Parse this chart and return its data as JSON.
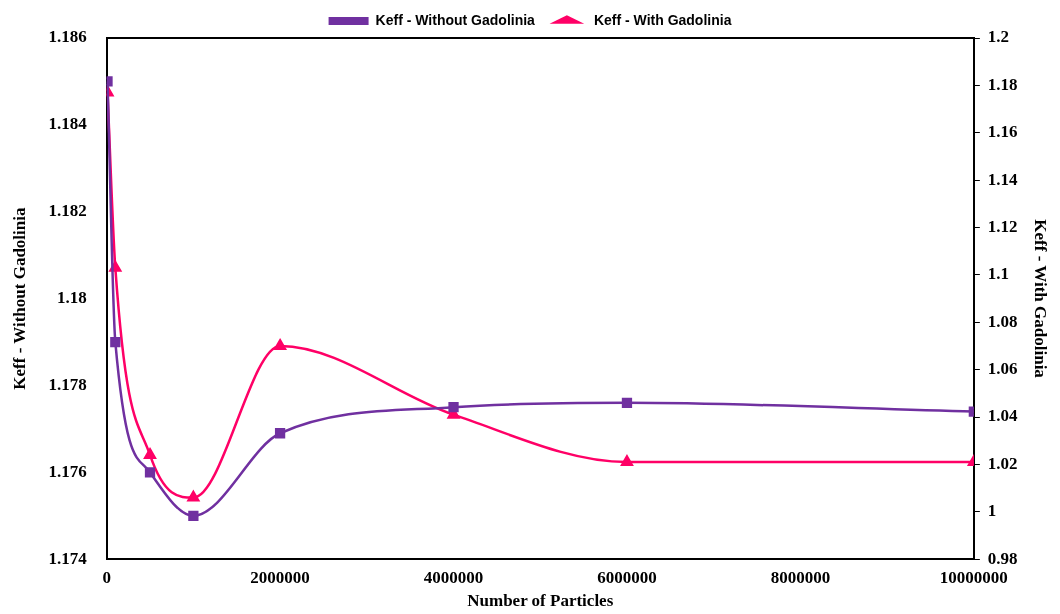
{
  "chart_data": {
    "type": "line",
    "xlabel": "Number of Particles",
    "ylabel": "Keff - Without Gadolinia",
    "y2label": "Keff - With Gadolinia",
    "x": [
      10000,
      100000,
      500000,
      1000000,
      2000000,
      4000000,
      6000000,
      10000000
    ],
    "series": [
      {
        "name": "Keff - Without Gadolinia",
        "color": "#7030a0",
        "marker": "square",
        "values": [
          1.185,
          1.179,
          1.176,
          1.175,
          1.1769,
          1.1775,
          1.1776,
          1.1774
        ]
      },
      {
        "name": "Keff - With Gadolinia",
        "color": "#ff0066",
        "marker": "triangle",
        "axis": "y2",
        "values": [
          1.177,
          1.103,
          1.024,
          1.006,
          1.07,
          1.041,
          1.021,
          1.021
        ]
      }
    ],
    "xlim": [
      0,
      10000000
    ],
    "xticks": [
      0,
      2000000,
      4000000,
      6000000,
      8000000,
      10000000
    ],
    "ylim": [
      1.174,
      1.186
    ],
    "yticks": [
      1.174,
      1.176,
      1.178,
      1.18,
      1.182,
      1.184,
      1.186
    ],
    "y2lim": [
      0.98,
      1.2
    ],
    "y2ticks": [
      0.98,
      1,
      1.02,
      1.04,
      1.06,
      1.08,
      1.1,
      1.12,
      1.14,
      1.16,
      1.18,
      1.2
    ],
    "grid": false,
    "legend": "top",
    "line_style": "solid"
  }
}
